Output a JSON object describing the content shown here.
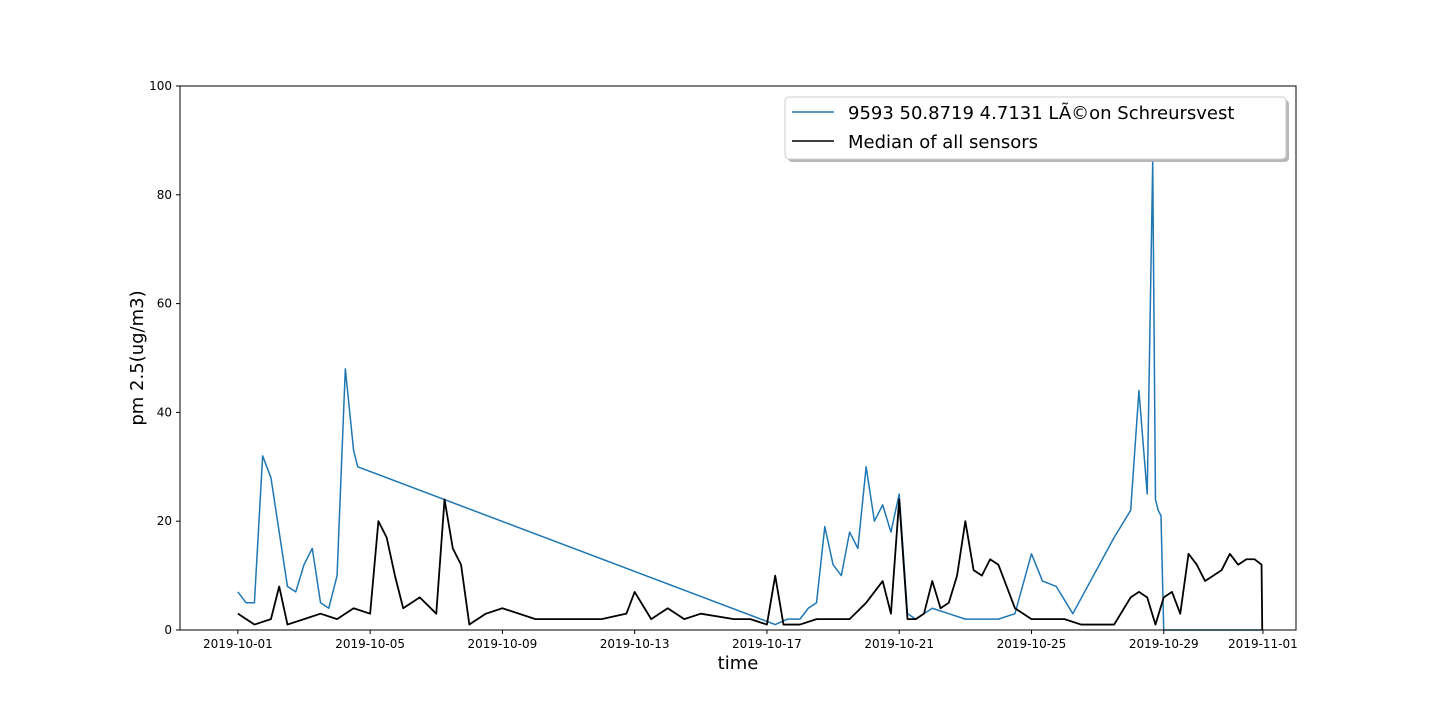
{
  "chart_data": {
    "type": "line",
    "xlabel": "time",
    "ylabel": "pm 2.5(ug/m3)",
    "ylim": [
      0,
      100
    ],
    "xlim": [
      "2019-09-29T06:00",
      "2019-11-02T00:00"
    ],
    "yticks": [
      0,
      20,
      40,
      60,
      80,
      100
    ],
    "xticks": [
      "2019-10-01",
      "2019-10-05",
      "2019-10-09",
      "2019-10-13",
      "2019-10-17",
      "2019-10-21",
      "2019-10-25",
      "2019-10-29",
      "2019-11-01"
    ],
    "grid": false,
    "legend_position": "top-right",
    "series": [
      {
        "name": "9593 50.8719 4.7131 LÃ©on Schreursvest",
        "color": "#1f77b4",
        "x": [
          "2019-10-01T00:00",
          "2019-10-01T06:00",
          "2019-10-01T12:00",
          "2019-10-01T18:00",
          "2019-10-02T00:00",
          "2019-10-02T06:00",
          "2019-10-02T12:00",
          "2019-10-02T18:00",
          "2019-10-03T00:00",
          "2019-10-03T06:00",
          "2019-10-03T12:00",
          "2019-10-03T18:00",
          "2019-10-04T00:00",
          "2019-10-04T06:00",
          "2019-10-04T12:00",
          "2019-10-04T15:00",
          "2019-10-17T06:00",
          "2019-10-17T15:00",
          "2019-10-18T00:00",
          "2019-10-18T06:00",
          "2019-10-18T12:00",
          "2019-10-18T18:00",
          "2019-10-19T00:00",
          "2019-10-19T06:00",
          "2019-10-19T12:00",
          "2019-10-19T18:00",
          "2019-10-20T00:00",
          "2019-10-20T06:00",
          "2019-10-20T12:00",
          "2019-10-20T18:00",
          "2019-10-21T00:00",
          "2019-10-21T06:00",
          "2019-10-21T12:00",
          "2019-10-21T18:00",
          "2019-10-22T00:00",
          "2019-10-22T12:00",
          "2019-10-23T00:00",
          "2019-10-23T12:00",
          "2019-10-24T00:00",
          "2019-10-24T12:00",
          "2019-10-25T00:00",
          "2019-10-25T08:00",
          "2019-10-25T18:00",
          "2019-10-26T06:00",
          "2019-10-27T12:00",
          "2019-10-28T00:00",
          "2019-10-28T06:00",
          "2019-10-28T12:00",
          "2019-10-28T16:00",
          "2019-10-28T18:00",
          "2019-10-28T20:00",
          "2019-10-28T22:00",
          "2019-10-29T00:00",
          "2019-10-31T23:00"
        ],
        "y": [
          7,
          5,
          5,
          32,
          28,
          18,
          8,
          7,
          12,
          15,
          5,
          4,
          10,
          48,
          33,
          30,
          1,
          2,
          2,
          4,
          5,
          19,
          12,
          10,
          18,
          15,
          30,
          20,
          23,
          18,
          25,
          3,
          2,
          3,
          4,
          3,
          2,
          2,
          2,
          3,
          14,
          9,
          8,
          3,
          17,
          22,
          44,
          25,
          86,
          24,
          22,
          21,
          0,
          0
        ]
      },
      {
        "name": "Median of all sensors",
        "color": "#000000",
        "x": [
          "2019-10-01T00:00",
          "2019-10-01T12:00",
          "2019-10-02T00:00",
          "2019-10-02T06:00",
          "2019-10-02T12:00",
          "2019-10-03T00:00",
          "2019-10-03T12:00",
          "2019-10-04T00:00",
          "2019-10-04T12:00",
          "2019-10-05T00:00",
          "2019-10-05T06:00",
          "2019-10-05T12:00",
          "2019-10-05T18:00",
          "2019-10-06T00:00",
          "2019-10-06T12:00",
          "2019-10-07T00:00",
          "2019-10-07T06:00",
          "2019-10-07T12:00",
          "2019-10-07T18:00",
          "2019-10-08T00:00",
          "2019-10-08T12:00",
          "2019-10-09T00:00",
          "2019-10-10T00:00",
          "2019-10-11T00:00",
          "2019-10-12T00:00",
          "2019-10-12T18:00",
          "2019-10-13T00:00",
          "2019-10-13T12:00",
          "2019-10-14T00:00",
          "2019-10-14T12:00",
          "2019-10-15T00:00",
          "2019-10-16T00:00",
          "2019-10-16T12:00",
          "2019-10-17T00:00",
          "2019-10-17T06:00",
          "2019-10-17T12:00",
          "2019-10-18T00:00",
          "2019-10-18T12:00",
          "2019-10-19T00:00",
          "2019-10-19T12:00",
          "2019-10-20T00:00",
          "2019-10-20T06:00",
          "2019-10-20T12:00",
          "2019-10-20T18:00",
          "2019-10-21T00:00",
          "2019-10-21T06:00",
          "2019-10-21T12:00",
          "2019-10-21T18:00",
          "2019-10-22T00:00",
          "2019-10-22T06:00",
          "2019-10-22T12:00",
          "2019-10-22T18:00",
          "2019-10-23T00:00",
          "2019-10-23T06:00",
          "2019-10-23T12:00",
          "2019-10-23T18:00",
          "2019-10-24T00:00",
          "2019-10-24T12:00",
          "2019-10-25T00:00",
          "2019-10-25T12:00",
          "2019-10-26T00:00",
          "2019-10-26T12:00",
          "2019-10-27T00:00",
          "2019-10-27T12:00",
          "2019-10-28T00:00",
          "2019-10-28T06:00",
          "2019-10-28T12:00",
          "2019-10-28T18:00",
          "2019-10-29T00:00",
          "2019-10-29T06:00",
          "2019-10-29T12:00",
          "2019-10-29T18:00",
          "2019-10-30T00:00",
          "2019-10-30T06:00",
          "2019-10-30T12:00",
          "2019-10-30T18:00",
          "2019-10-31T00:00",
          "2019-10-31T06:00",
          "2019-10-31T12:00",
          "2019-10-31T18:00",
          "2019-10-31T23:00",
          "2019-10-31T23:30"
        ],
        "y": [
          3,
          1,
          2,
          8,
          1,
          2,
          3,
          2,
          4,
          3,
          20,
          17,
          10,
          4,
          6,
          3,
          24,
          15,
          12,
          1,
          3,
          4,
          2,
          2,
          2,
          3,
          7,
          2,
          4,
          2,
          3,
          2,
          2,
          1,
          10,
          1,
          1,
          2,
          2,
          2,
          5,
          7,
          9,
          3,
          24,
          2,
          2,
          3,
          9,
          4,
          5,
          10,
          20,
          11,
          10,
          13,
          12,
          4,
          2,
          2,
          2,
          1,
          1,
          1,
          6,
          7,
          6,
          1,
          6,
          7,
          3,
          14,
          12,
          9,
          10,
          11,
          14,
          12,
          13,
          13,
          12,
          0
        ]
      }
    ]
  }
}
